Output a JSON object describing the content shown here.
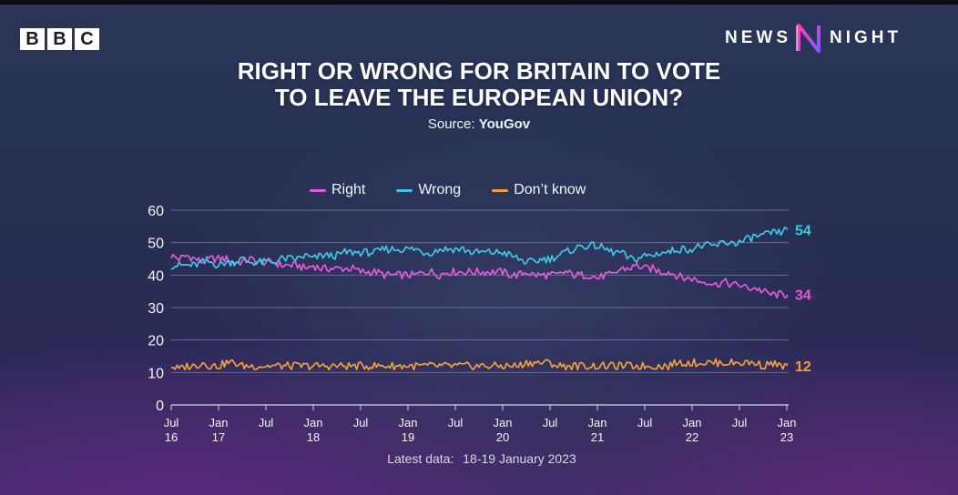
{
  "brand": {
    "bbc_letters": [
      "B",
      "B",
      "C"
    ],
    "programme_left": "NEWS",
    "programme_right": "NIGHT",
    "programme_mark": "N"
  },
  "colors": {
    "right": "#e45ad8",
    "wrong": "#3ec7e6",
    "dont_know": "#f2a13a",
    "grid": "#8a93b8",
    "axis_text": "#f3f4fa"
  },
  "chart_data": {
    "type": "line",
    "title_line1": "RIGHT OR WRONG FOR BRITAIN TO VOTE",
    "title_line2": "TO LEAVE THE EUROPEAN UNION?",
    "source_label": "Source:",
    "source_name": "YouGov",
    "footer_label": "Latest data:",
    "footer_value": "18-19 January 2023",
    "ylim": [
      0,
      60
    ],
    "y_ticks": [
      0,
      10,
      20,
      30,
      40,
      50,
      60
    ],
    "grid": true,
    "legend_position": "top",
    "x_range": [
      "2016-07",
      "2023-01"
    ],
    "x_ticks": [
      {
        "month": "Jul",
        "year": "16",
        "date": "2016-07"
      },
      {
        "month": "Jan",
        "year": "17",
        "date": "2017-01"
      },
      {
        "month": "Jul",
        "year": "",
        "date": "2017-07"
      },
      {
        "month": "Jan",
        "year": "18",
        "date": "2018-01"
      },
      {
        "month": "Jul",
        "year": "",
        "date": "2018-07"
      },
      {
        "month": "Jan",
        "year": "19",
        "date": "2019-01"
      },
      {
        "month": "Jul",
        "year": "",
        "date": "2019-07"
      },
      {
        "month": "Jan",
        "year": "20",
        "date": "2020-01"
      },
      {
        "month": "Jul",
        "year": "",
        "date": "2020-07"
      },
      {
        "month": "Jan",
        "year": "21",
        "date": "2021-01"
      },
      {
        "month": "Jul",
        "year": "",
        "date": "2021-07"
      },
      {
        "month": "Jan",
        "year": "22",
        "date": "2022-01"
      },
      {
        "month": "Jul",
        "year": "",
        "date": "2022-07"
      },
      {
        "month": "Jan",
        "year": "23",
        "date": "2023-01"
      }
    ],
    "x": [
      "2016-07",
      "2016-08",
      "2016-09",
      "2016-10",
      "2016-11",
      "2016-12",
      "2017-01",
      "2017-02",
      "2017-03",
      "2017-04",
      "2017-05",
      "2017-06",
      "2017-07",
      "2017-08",
      "2017-09",
      "2017-10",
      "2017-11",
      "2017-12",
      "2018-01",
      "2018-02",
      "2018-03",
      "2018-04",
      "2018-05",
      "2018-06",
      "2018-07",
      "2018-08",
      "2018-09",
      "2018-10",
      "2018-11",
      "2018-12",
      "2019-01",
      "2019-02",
      "2019-03",
      "2019-04",
      "2019-05",
      "2019-06",
      "2019-07",
      "2019-08",
      "2019-09",
      "2019-10",
      "2019-11",
      "2019-12",
      "2020-01",
      "2020-02",
      "2020-03",
      "2020-04",
      "2020-05",
      "2020-06",
      "2020-07",
      "2020-08",
      "2020-09",
      "2020-10",
      "2020-11",
      "2020-12",
      "2021-01",
      "2021-02",
      "2021-03",
      "2021-04",
      "2021-05",
      "2021-06",
      "2021-07",
      "2021-08",
      "2021-09",
      "2021-10",
      "2021-11",
      "2021-12",
      "2022-01",
      "2022-02",
      "2022-03",
      "2022-04",
      "2022-05",
      "2022-06",
      "2022-07",
      "2022-08",
      "2022-09",
      "2022-10",
      "2022-11",
      "2022-12",
      "2023-01"
    ],
    "series": [
      {
        "name": "Right",
        "key": "right",
        "end_label": "34",
        "values": [
          46,
          45,
          46,
          45,
          44,
          45,
          45,
          45,
          44,
          44,
          45,
          44,
          44,
          44,
          43,
          43,
          43,
          42,
          43,
          42,
          42,
          42,
          42,
          42,
          41,
          41,
          41,
          40,
          40,
          40,
          40,
          40,
          41,
          41,
          40,
          41,
          41,
          41,
          41,
          41,
          41,
          41,
          41,
          40,
          40,
          41,
          40,
          40,
          40,
          40,
          41,
          40,
          40,
          40,
          39,
          40,
          40,
          42,
          42,
          43,
          42,
          42,
          41,
          41,
          40,
          39,
          39,
          38,
          38,
          37,
          38,
          37,
          37,
          36,
          36,
          35,
          34,
          34,
          34
        ]
      },
      {
        "name": "Wrong",
        "key": "wrong",
        "end_label": "54",
        "values": [
          43,
          43,
          43,
          43,
          44,
          44,
          43,
          44,
          44,
          45,
          44,
          44,
          44,
          44,
          45,
          45,
          45,
          46,
          45,
          46,
          46,
          46,
          47,
          47,
          47,
          47,
          47,
          48,
          48,
          48,
          48,
          48,
          47,
          47,
          48,
          48,
          48,
          48,
          47,
          47,
          47,
          47,
          47,
          46,
          45,
          44,
          44,
          45,
          45,
          46,
          47,
          48,
          49,
          49,
          49,
          48,
          47,
          47,
          45,
          45,
          46,
          46,
          47,
          47,
          48,
          48,
          48,
          49,
          49,
          49,
          50,
          50,
          50,
          51,
          52,
          52,
          53,
          53,
          54
        ]
      },
      {
        "name": "Don’t know",
        "key": "dont_know",
        "end_label": "12",
        "values": [
          12,
          11,
          12,
          12,
          13,
          12,
          12,
          13,
          13,
          12,
          12,
          12,
          12,
          12,
          12,
          12,
          12,
          12,
          12,
          12,
          12,
          12,
          12,
          12,
          12,
          12,
          12,
          12,
          12,
          12,
          12,
          12,
          12,
          12,
          12,
          12,
          12,
          12,
          12,
          12,
          12,
          12,
          12,
          12,
          12,
          13,
          13,
          13,
          13,
          12,
          12,
          12,
          12,
          12,
          12,
          12,
          12,
          12,
          12,
          12,
          12,
          12,
          12,
          12,
          13,
          13,
          13,
          13,
          13,
          13,
          13,
          13,
          13,
          13,
          13,
          12,
          13,
          12,
          12
        ]
      }
    ]
  }
}
